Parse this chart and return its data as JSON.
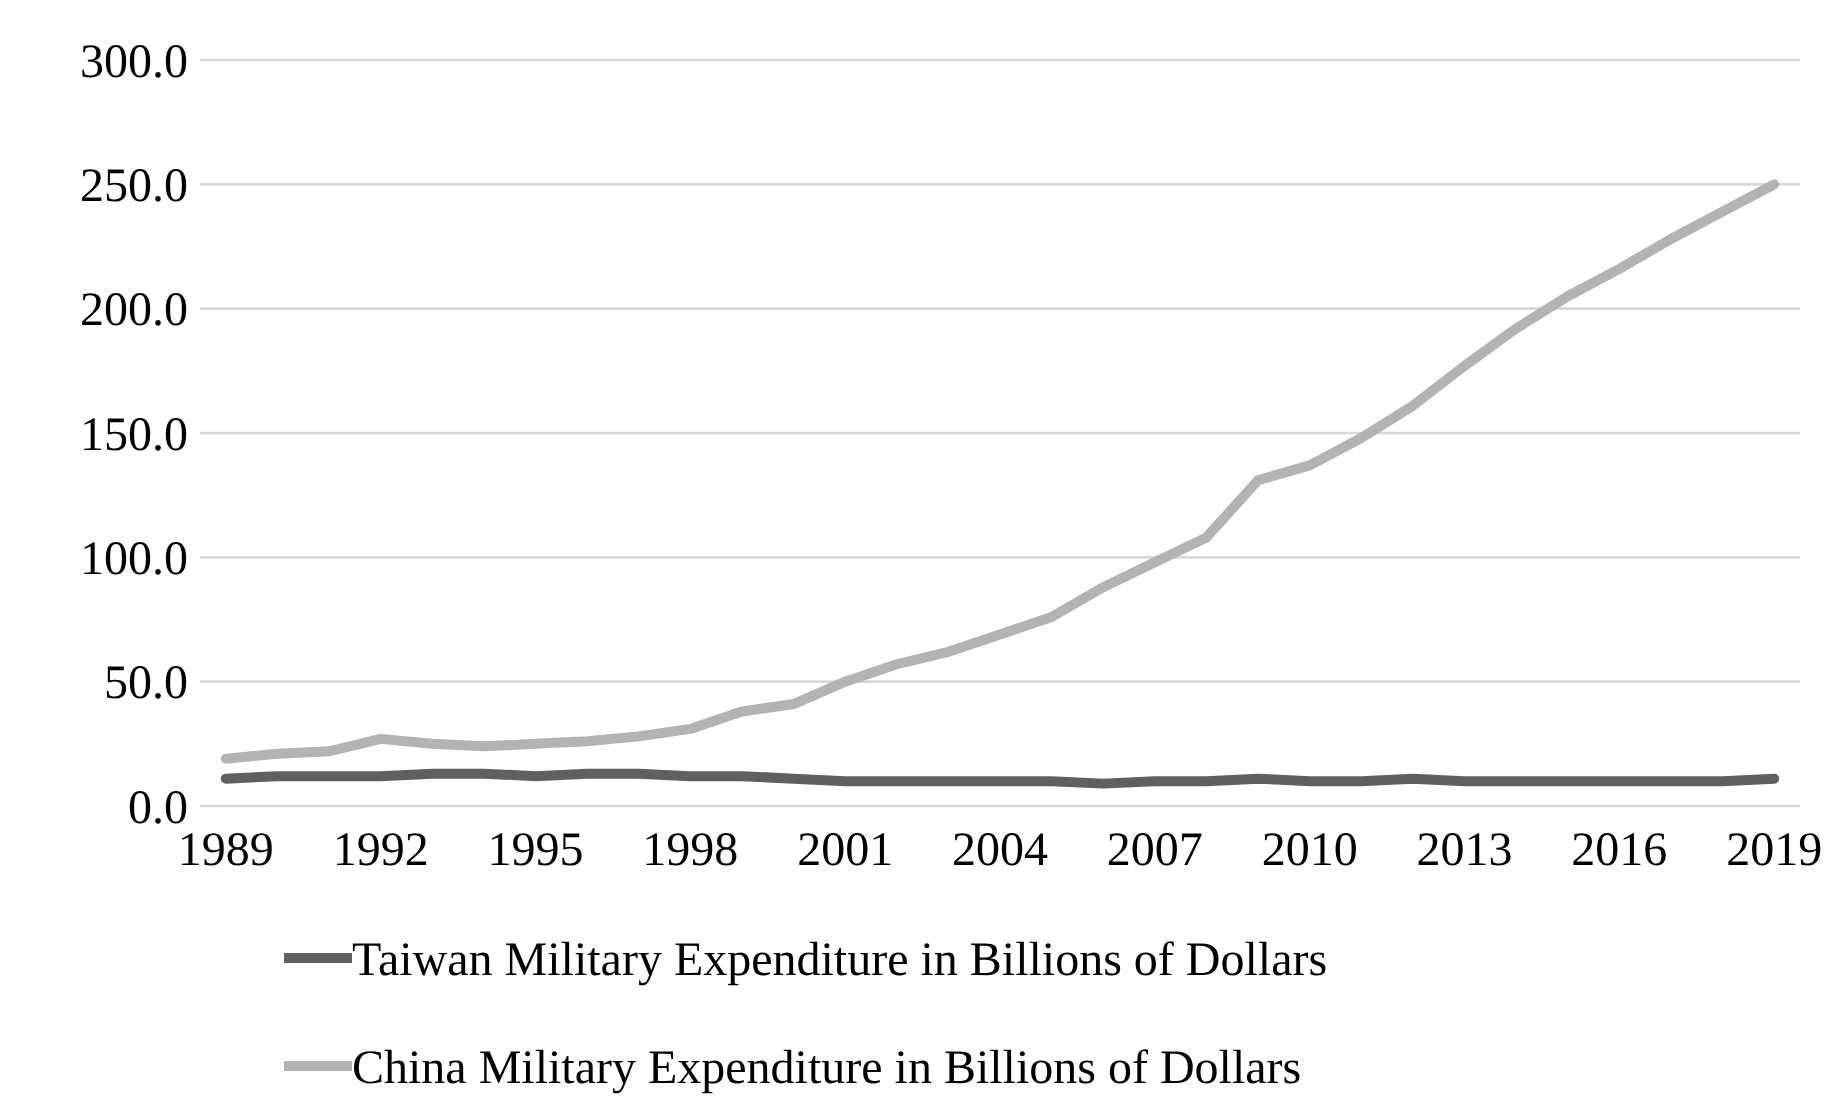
{
  "chart_data": {
    "type": "line",
    "x": [
      1989,
      1990,
      1991,
      1992,
      1993,
      1994,
      1995,
      1996,
      1997,
      1998,
      1999,
      2000,
      2001,
      2002,
      2003,
      2004,
      2005,
      2006,
      2007,
      2008,
      2009,
      2010,
      2011,
      2012,
      2013,
      2014,
      2015,
      2016,
      2017,
      2018,
      2019
    ],
    "series": [
      {
        "name": "Taiwan Military Expenditure in Billions of Dollars",
        "color": "#606060",
        "values": [
          11,
          12,
          12,
          12,
          13,
          13,
          12,
          13,
          13,
          12,
          12,
          11,
          10,
          10,
          10,
          10,
          10,
          9,
          10,
          10,
          11,
          10,
          10,
          11,
          10,
          10,
          10,
          10,
          10,
          10,
          11
        ]
      },
      {
        "name": "China Military Expenditure in Billions of Dollars",
        "color": "#b3b3b3",
        "values": [
          19,
          21,
          22,
          27,
          25,
          24,
          25,
          26,
          28,
          31,
          38,
          41,
          50,
          57,
          62,
          69,
          76,
          88,
          98,
          108,
          131,
          137,
          148,
          161,
          177,
          192,
          205,
          216,
          228,
          239,
          250
        ]
      }
    ],
    "xlim": [
      1988.5,
      2019.5
    ],
    "xticks": [
      1989,
      1992,
      1995,
      1998,
      2001,
      2004,
      2007,
      2010,
      2013,
      2016,
      2019
    ],
    "ylim": [
      0,
      300
    ],
    "yticks": [
      {
        "value": 0,
        "label": "0.0"
      },
      {
        "value": 50,
        "label": "50.0"
      },
      {
        "value": 100,
        "label": "100.0"
      },
      {
        "value": 150,
        "label": "150.0"
      },
      {
        "value": 200,
        "label": "200.0"
      },
      {
        "value": 250,
        "label": "250.0"
      },
      {
        "value": 300,
        "label": "300.0"
      }
    ],
    "grid": "y",
    "legend": "bottom",
    "marker": "none",
    "line_style": "solid"
  }
}
